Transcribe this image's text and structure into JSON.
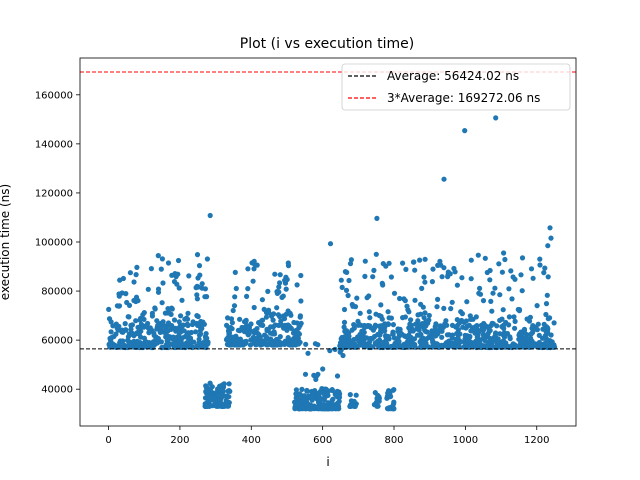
{
  "chart_data": {
    "type": "scatter",
    "title": "Plot (i vs execution time)",
    "xlabel": "i",
    "ylabel": "execution time (ns)",
    "xlim": [
      -80,
      1310
    ],
    "ylim": [
      25000,
      175000
    ],
    "xticks": [
      0,
      200,
      400,
      600,
      800,
      1000,
      1200
    ],
    "yticks": [
      40000,
      60000,
      80000,
      100000,
      120000,
      140000,
      160000
    ],
    "grid": false,
    "legend_position": "top-right",
    "point_color": "#1f77b4",
    "reference_lines": [
      {
        "label": "Average: 56424.02 ns",
        "value": 56424.02,
        "color": "#000000",
        "style": "dashed"
      },
      {
        "label": "3*Average: 169272.06 ns",
        "value": 169272.06,
        "color": "#ff0000",
        "style": "dashed"
      }
    ],
    "clusters": [
      {
        "x_range": [
          0,
          280
        ],
        "y_range": [
          57000,
          66000
        ],
        "count": 260
      },
      {
        "x_range": [
          0,
          280
        ],
        "y_range": [
          66000,
          95000
        ],
        "count": 110
      },
      {
        "x_range": [
          270,
          340
        ],
        "y_range": [
          33000,
          43000
        ],
        "count": 110
      },
      {
        "x_range": [
          330,
          540
        ],
        "y_range": [
          58000,
          66000
        ],
        "count": 190
      },
      {
        "x_range": [
          330,
          540
        ],
        "y_range": [
          66000,
          97000
        ],
        "count": 80
      },
      {
        "x_range": [
          520,
          650
        ],
        "y_range": [
          32000,
          40000
        ],
        "count": 170
      },
      {
        "x_range": [
          550,
          660
        ],
        "y_range": [
          40000,
          64000
        ],
        "count": 20
      },
      {
        "x_range": [
          650,
          800
        ],
        "y_range": [
          57000,
          66000
        ],
        "count": 140
      },
      {
        "x_range": [
          650,
          800
        ],
        "y_range": [
          66000,
          95000
        ],
        "count": 50
      },
      {
        "x_range": [
          675,
          695
        ],
        "y_range": [
          33000,
          38000
        ],
        "count": 14
      },
      {
        "x_range": [
          740,
          760
        ],
        "y_range": [
          33000,
          39000
        ],
        "count": 14
      },
      {
        "x_range": [
          780,
          800
        ],
        "y_range": [
          32000,
          40000
        ],
        "count": 24
      },
      {
        "x_range": [
          800,
          1250
        ],
        "y_range": [
          57000,
          66000
        ],
        "count": 380
      },
      {
        "x_range": [
          800,
          1250
        ],
        "y_range": [
          66000,
          95000
        ],
        "count": 140
      }
    ],
    "outliers": [
      {
        "x": 285,
        "y": 110800
      },
      {
        "x": 622,
        "y": 99300
      },
      {
        "x": 752,
        "y": 109600
      },
      {
        "x": 940,
        "y": 125600
      },
      {
        "x": 998,
        "y": 145400
      },
      {
        "x": 1085,
        "y": 150600
      },
      {
        "x": 1237,
        "y": 105800
      },
      {
        "x": 1240,
        "y": 101600
      },
      {
        "x": 1231,
        "y": 98500
      },
      {
        "x": 1160,
        "y": 93500
      },
      {
        "x": 1107,
        "y": 95500
      }
    ]
  }
}
